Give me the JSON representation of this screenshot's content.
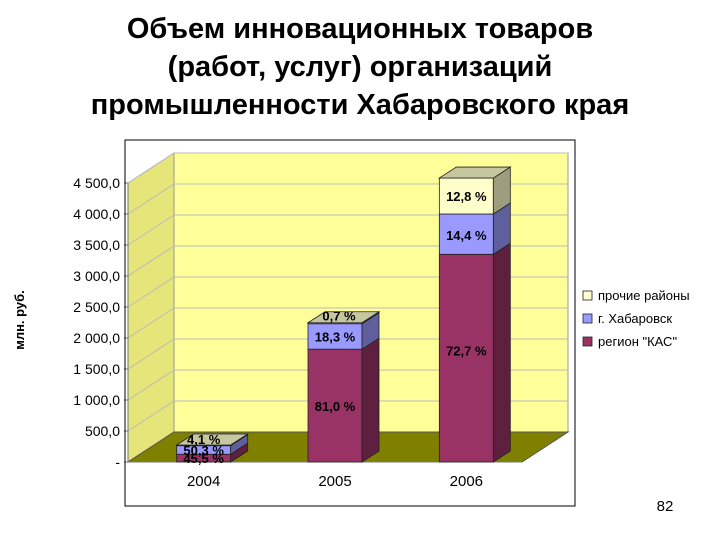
{
  "title_lines": [
    "Объем инновационных товаров",
    "(работ, услуг) организаций",
    "промышленности Хабаровского края"
  ],
  "page_number": "82",
  "chart_data": {
    "type": "bar",
    "stacked": true,
    "three_d": true,
    "ylabel": "млн. руб.",
    "ylim": [
      0,
      4500
    ],
    "yticks": [
      0,
      500,
      1000,
      1500,
      2000,
      2500,
      3000,
      3500,
      4000,
      4500
    ],
    "ytick_labels": [
      "-",
      "500,0",
      "1 000,0",
      "1 500,0",
      "2 000,0",
      "2 500,0",
      "3 000,0",
      "3 500,0",
      "4 000,0",
      "4 500,0"
    ],
    "categories": [
      "2004",
      "2005",
      "2006"
    ],
    "legend_position": "right",
    "series": [
      {
        "name": "регион \"КАС\"",
        "color": "#993366",
        "values": [
          125,
          1820,
          3350
        ],
        "labels": [
          "45,5 %",
          "81,0 %",
          "72,7 %"
        ]
      },
      {
        "name": "г. Хабаровск",
        "color": "#9999ff",
        "values": [
          138,
          410,
          650
        ],
        "labels": [
          "50,3 %",
          "18,3 %",
          "14,4 %"
        ]
      },
      {
        "name": "прочие районы",
        "color": "#ffffcc",
        "values": [
          11,
          16,
          580
        ],
        "labels": [
          "4,1 %",
          "0,7 %",
          "12,8 %"
        ]
      }
    ],
    "colors": {
      "wall": "#ffff99",
      "floor": "#808000",
      "grid": "#bbbbbb"
    }
  }
}
